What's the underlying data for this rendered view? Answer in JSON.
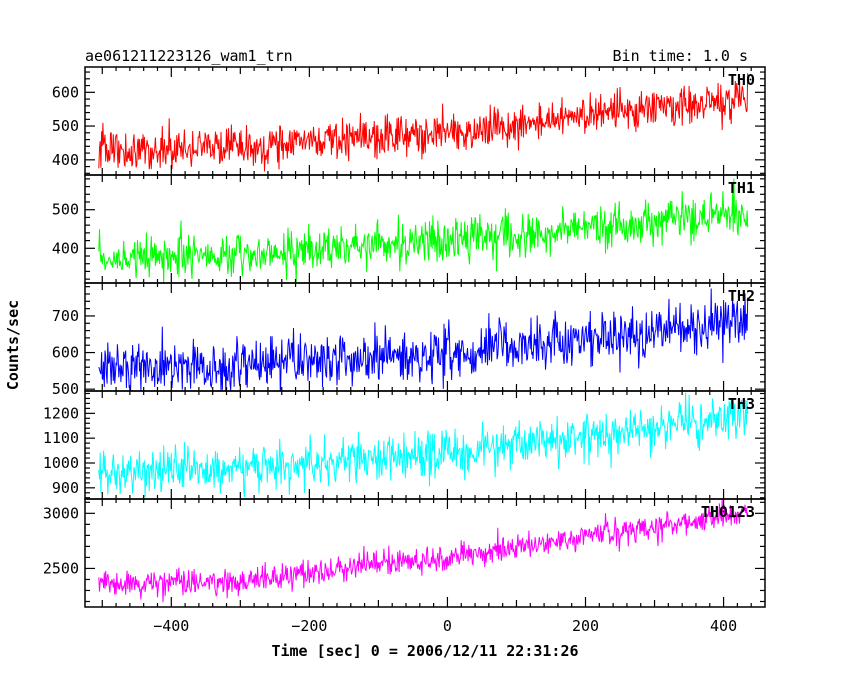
{
  "chart_data": {
    "type": "line",
    "title": "ae061211223126_wam1_trn",
    "subtitle": "Bin time: 1.0 s",
    "xlabel": "Time [sec] 0 = 2006/12/11 22:31:26",
    "ylabel": "Counts/sec",
    "xlim": [
      -525,
      460
    ],
    "x_range": [
      -505,
      435
    ],
    "x_ticks": [
      -400,
      -200,
      0,
      200,
      400
    ],
    "grid": false,
    "panels": [
      {
        "name": "TH0",
        "color": "#ff0000",
        "ylim": [
          355,
          675
        ],
        "y_ticks": [
          400,
          500,
          600
        ],
        "trend": [
          [
            -505,
            430
          ],
          [
            -300,
            440
          ],
          [
            0,
            480
          ],
          [
            435,
            585
          ]
        ],
        "noise": 30
      },
      {
        "name": "TH1",
        "color": "#00ff00",
        "ylim": [
          310,
          590
        ],
        "y_ticks": [
          400,
          500
        ],
        "trend": [
          [
            -505,
            380
          ],
          [
            -300,
            385
          ],
          [
            0,
            420
          ],
          [
            435,
            490
          ]
        ],
        "noise": 28
      },
      {
        "name": "TH2",
        "color": "#0000ff",
        "ylim": [
          495,
          790
        ],
        "y_ticks": [
          500,
          600,
          700
        ],
        "trend": [
          [
            -505,
            560
          ],
          [
            -300,
            568
          ],
          [
            0,
            600
          ],
          [
            435,
            690
          ]
        ],
        "noise": 35
      },
      {
        "name": "TH3",
        "color": "#00ffff",
        "ylim": [
          855,
          1290
        ],
        "y_ticks": [
          900,
          1000,
          1100,
          1200
        ],
        "trend": [
          [
            -505,
            960
          ],
          [
            -300,
            975
          ],
          [
            0,
            1040
          ],
          [
            435,
            1190
          ]
        ],
        "noise": 45
      },
      {
        "name": "TH0123",
        "color": "#ff00ff",
        "ylim": [
          2150,
          3130
        ],
        "y_ticks": [
          2500,
          3000
        ],
        "trend": [
          [
            -505,
            2360
          ],
          [
            -300,
            2385
          ],
          [
            0,
            2600
          ],
          [
            435,
            3010
          ]
        ],
        "noise": 60
      }
    ]
  }
}
